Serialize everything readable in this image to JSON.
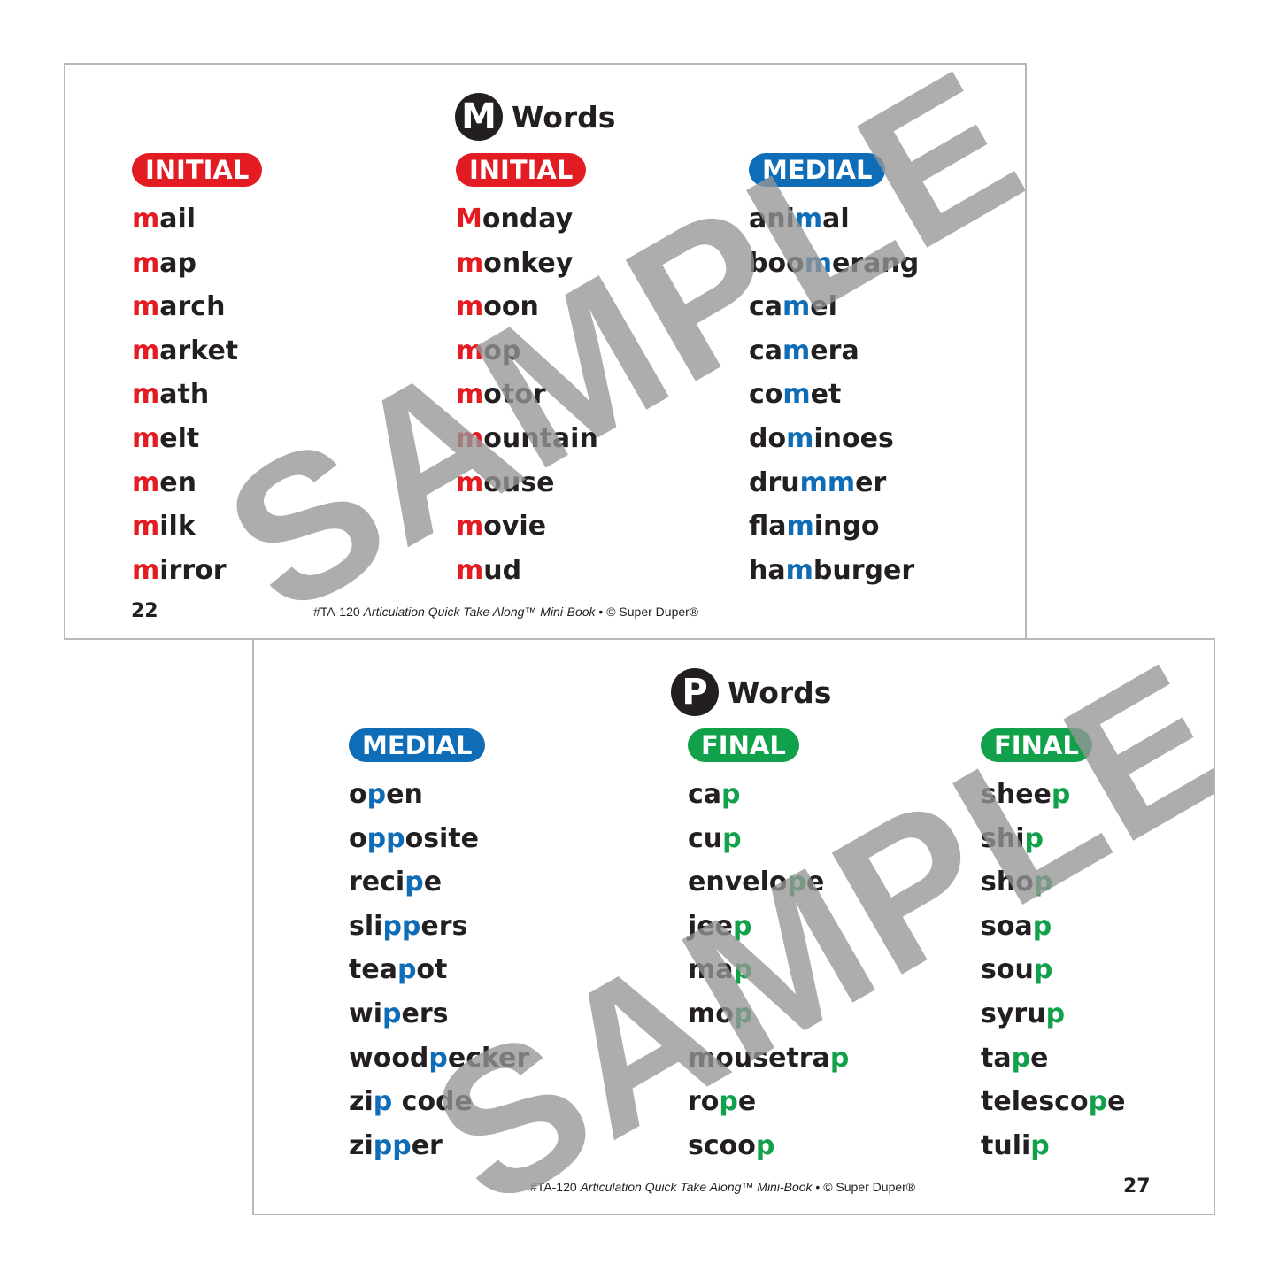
{
  "colors": {
    "initial": "#e31b23",
    "medial": "#0f6cb6",
    "final": "#12a14b",
    "text": "#231f20",
    "watermark": "#969696"
  },
  "watermark": "SAMPLE",
  "cards": [
    {
      "letter": "M",
      "title": "Words",
      "page": "22",
      "footer": {
        "code": "#TA-120",
        "book": "Articulation Quick Take Along™ Mini-Book",
        "sep": "•",
        "copyright": "© Super Duper®"
      },
      "columns": [
        {
          "badge": "INITIAL",
          "type": "initial",
          "words": [
            [
              "",
              "m",
              "ail"
            ],
            [
              "",
              "m",
              "ap"
            ],
            [
              "",
              "m",
              "arch"
            ],
            [
              "",
              "m",
              "arket"
            ],
            [
              "",
              "m",
              "ath"
            ],
            [
              "",
              "m",
              "elt"
            ],
            [
              "",
              "m",
              "en"
            ],
            [
              "",
              "m",
              "ilk"
            ],
            [
              "",
              "m",
              "irror"
            ]
          ]
        },
        {
          "badge": "INITIAL",
          "type": "initial",
          "words": [
            [
              "",
              "M",
              "onday"
            ],
            [
              "",
              "m",
              "onkey"
            ],
            [
              "",
              "m",
              "oon"
            ],
            [
              "",
              "m",
              "op"
            ],
            [
              "",
              "m",
              "otor"
            ],
            [
              "",
              "m",
              "ountain"
            ],
            [
              "",
              "m",
              "ouse"
            ],
            [
              "",
              "m",
              "ovie"
            ],
            [
              "",
              "m",
              "ud"
            ]
          ]
        },
        {
          "badge": "MEDIAL",
          "type": "medial",
          "words": [
            [
              "ani",
              "m",
              "al"
            ],
            [
              "boo",
              "m",
              "erang"
            ],
            [
              "ca",
              "m",
              "el"
            ],
            [
              "ca",
              "m",
              "era"
            ],
            [
              "co",
              "m",
              "et"
            ],
            [
              "do",
              "m",
              "inoes"
            ],
            [
              "dru",
              "mm",
              "er"
            ],
            [
              "fla",
              "m",
              "ingo"
            ],
            [
              "ha",
              "m",
              "burger"
            ]
          ]
        }
      ]
    },
    {
      "letter": "P",
      "title": "Words",
      "page": "27",
      "footer": {
        "code": "#TA-120",
        "book": "Articulation Quick Take Along™ Mini-Book",
        "sep": "•",
        "copyright": "© Super Duper®"
      },
      "columns": [
        {
          "badge": "MEDIAL",
          "type": "medial",
          "words": [
            [
              "o",
              "p",
              "en"
            ],
            [
              "o",
              "pp",
              "osite"
            ],
            [
              "reci",
              "p",
              "e"
            ],
            [
              "sli",
              "pp",
              "ers"
            ],
            [
              "tea",
              "p",
              "ot"
            ],
            [
              "wi",
              "p",
              "ers"
            ],
            [
              "wood",
              "p",
              "ecker"
            ],
            [
              "zi",
              "p",
              " code"
            ],
            [
              "zi",
              "pp",
              "er"
            ]
          ]
        },
        {
          "badge": "FINAL",
          "type": "final",
          "words": [
            [
              "ca",
              "p",
              ""
            ],
            [
              "cu",
              "p",
              ""
            ],
            [
              "envelo",
              "p",
              "e"
            ],
            [
              "jee",
              "p",
              ""
            ],
            [
              "ma",
              "p",
              ""
            ],
            [
              "mo",
              "p",
              ""
            ],
            [
              "mousetra",
              "p",
              ""
            ],
            [
              "ro",
              "p",
              "e"
            ],
            [
              "scoo",
              "p",
              ""
            ]
          ]
        },
        {
          "badge": "FINAL",
          "type": "final",
          "words": [
            [
              "shee",
              "p",
              ""
            ],
            [
              "shi",
              "p",
              ""
            ],
            [
              "sho",
              "p",
              ""
            ],
            [
              "soa",
              "p",
              ""
            ],
            [
              "sou",
              "p",
              ""
            ],
            [
              "syru",
              "p",
              ""
            ],
            [
              "ta",
              "p",
              "e"
            ],
            [
              "telesco",
              "p",
              "e"
            ],
            [
              "tuli",
              "p",
              ""
            ]
          ]
        }
      ]
    }
  ]
}
